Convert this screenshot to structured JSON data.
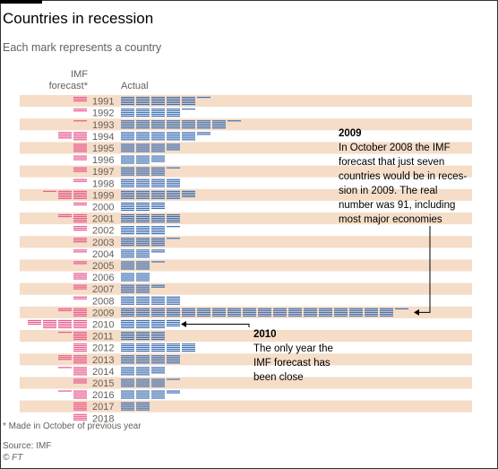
{
  "title": "Countries in recession",
  "subtitle": "Each mark represents a country",
  "headers": {
    "imf": "IMF forecast*",
    "actual": "Actual"
  },
  "annotations": {
    "a2009": {
      "title": "2009",
      "text": "In October 2008 the IMF forecast that just seven countries would be in reces-sion in 2009. The real number was 91, including most major economies"
    },
    "a2010": {
      "title": "2010",
      "text": "The only year the IMF forecast has been close"
    }
  },
  "footnote": "* Made in October of previous year",
  "source": "Source: IMF",
  "credit": "© FT",
  "colors": {
    "band": "#f5ddc8",
    "imf": "#e8598f",
    "actual": "#3f6fb0",
    "year_text": "#66605c"
  },
  "chart_data": {
    "type": "unit-chart",
    "years": [
      "1991",
      "1992",
      "1993",
      "1994",
      "1995",
      "1996",
      "1997",
      "1998",
      "1999",
      "2000",
      "2001",
      "2002",
      "2003",
      "2004",
      "2005",
      "2006",
      "2007",
      "2008",
      "2009",
      "2010",
      "2011",
      "2012",
      "2013",
      "2014",
      "2015",
      "2016",
      "2017",
      "2018"
    ],
    "series": [
      {
        "name": "IMF forecast",
        "values": [
          3,
          2,
          1,
          9,
          5,
          3,
          3,
          2,
          11,
          2,
          7,
          3,
          3,
          2,
          2,
          4,
          3,
          2,
          7,
          18,
          6,
          5,
          8,
          6,
          3,
          6,
          5,
          4
        ]
      },
      {
        "name": "Actual",
        "values": [
          26,
          21,
          36,
          27,
          19,
          14,
          16,
          20,
          24,
          14,
          20,
          16,
          16,
          12,
          11,
          10,
          12,
          20,
          91,
          19,
          15,
          25,
          20,
          14,
          16,
          17,
          10,
          0
        ]
      }
    ],
    "band_years": [
      "1991",
      "1993",
      "1995",
      "1997",
      "1999",
      "2001",
      "2003",
      "2005",
      "2007",
      "2009",
      "2011",
      "2013",
      "2015",
      "2017"
    ]
  }
}
